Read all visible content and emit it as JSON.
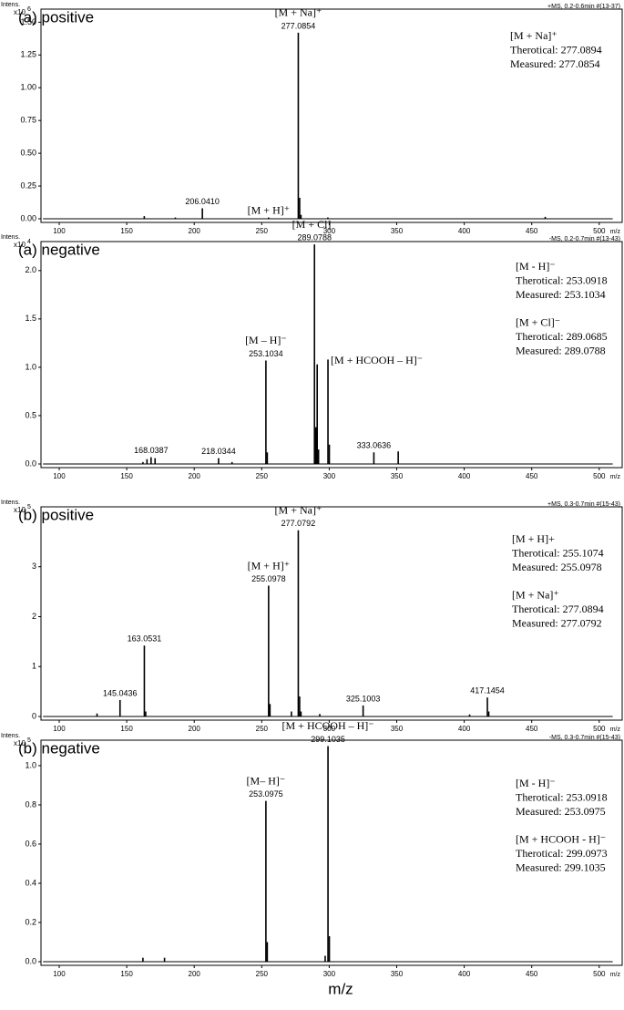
{
  "shared_x_label": "m/z",
  "chart_data": [
    {
      "type": "stem",
      "title": "(a) positive",
      "scan_info": "+MS, 0.2-0.6min #(13-37)",
      "y_label": "Intens.",
      "y_multiplier": "x10",
      "y_exponent": "6",
      "x_unit": "m/z",
      "color": "#000000",
      "xlim": [
        86.5,
        517
      ],
      "xticks": [
        100,
        150,
        200,
        250,
        300,
        350,
        400,
        450,
        500
      ],
      "ylim": [
        0,
        1.6
      ],
      "yticks": [
        {
          "value": 0,
          "label": "0.00"
        },
        0.25,
        {
          "value": 0.5,
          "label": "0.50"
        },
        0.75,
        {
          "value": 1,
          "label": "1.00"
        },
        1.25,
        {
          "value": 1.5,
          "label": "1.50"
        }
      ],
      "x": [
        163.0,
        186.0,
        206.041,
        255.1,
        277.0854,
        278.09,
        279.09,
        299.0,
        460.0
      ],
      "values": [
        0.02,
        0.01,
        0.08,
        0.01,
        1.42,
        0.16,
        0.03,
        0.01,
        0.015
      ],
      "peak_labels": [
        null,
        null,
        "206.0410",
        null,
        "277.0854",
        null,
        null,
        null,
        null
      ],
      "ion_labels": [
        null,
        null,
        null,
        "[M + H]⁺",
        "[M + Na]⁺",
        null,
        null,
        null,
        null
      ],
      "info_box": [
        [
          "[M + Na]⁺",
          "Therotical: 277.0894",
          "Measured: 277.0854"
        ]
      ]
    },
    {
      "type": "stem",
      "title": "(a) negative",
      "scan_info": "-MS, 0.2-0.7min #(13-43)",
      "y_label": "Intens.",
      "y_multiplier": "x10",
      "y_exponent": "4",
      "x_unit": "m/z",
      "color": "#000000",
      "xlim": [
        86.5,
        517
      ],
      "xticks": [
        100,
        150,
        200,
        250,
        300,
        350,
        400,
        450,
        500
      ],
      "ylim": [
        0,
        2.3
      ],
      "yticks": [
        {
          "value": 0,
          "label": "0.0"
        },
        0.5,
        {
          "value": 1,
          "label": "1.0"
        },
        1.5,
        {
          "value": 2,
          "label": "2.0"
        }
      ],
      "x": [
        162,
        165,
        168.0387,
        171,
        218.0344,
        228,
        253.1034,
        254.1,
        289.0788,
        290.08,
        291.08,
        292.08,
        299.08,
        300.08,
        333.0636,
        351.1
      ],
      "values": [
        0.02,
        0.05,
        0.07,
        0.06,
        0.06,
        0.02,
        1.07,
        0.12,
        2.27,
        0.38,
        1.03,
        0.15,
        1.08,
        0.2,
        0.12,
        0.13
      ],
      "peak_labels": [
        null,
        null,
        "168.0387",
        null,
        "218.0344",
        null,
        "253.1034",
        null,
        "289.0788",
        null,
        null,
        null,
        null,
        null,
        "333.0636",
        null
      ],
      "ion_labels": [
        null,
        null,
        null,
        null,
        null,
        null,
        "[M – H]⁻",
        null,
        "[M + Cl]⁻",
        null,
        null,
        null,
        "[M + HCOOH – H]⁻",
        null,
        null,
        null
      ],
      "info_box": [
        [
          "[M - H]⁻",
          "Therotical: 253.0918",
          "Measured: 253.1034"
        ],
        [
          "[M + Cl]⁻",
          "Therotical: 289.0685",
          "Measured: 289.0788"
        ]
      ]
    },
    {
      "type": "stem",
      "title": "(b) positive",
      "scan_info": "+MS, 0.3-0.7min #(15-43)",
      "y_label": "Intens.",
      "y_multiplier": "x10",
      "y_exponent": "5",
      "x_unit": "m/z",
      "color": "#000000",
      "xlim": [
        86.5,
        517
      ],
      "xticks": [
        100,
        150,
        200,
        250,
        300,
        350,
        400,
        450,
        500
      ],
      "ylim": [
        0,
        4.2
      ],
      "yticks": [
        0,
        1,
        2,
        3
      ],
      "x": [
        128,
        145.0436,
        163.0531,
        164.05,
        255.0978,
        256.1,
        272,
        277.0792,
        278.08,
        279.08,
        293,
        325.1003,
        404,
        417.1454,
        418.15
      ],
      "values": [
        0.06,
        0.33,
        1.42,
        0.1,
        2.62,
        0.25,
        0.1,
        3.73,
        0.4,
        0.1,
        0.05,
        0.22,
        0.04,
        0.38,
        0.1
      ],
      "peak_labels": [
        null,
        "145.0436",
        "163.0531",
        null,
        "255.0978",
        null,
        null,
        "277.0792",
        null,
        null,
        null,
        "325.1003",
        null,
        "417.1454",
        null
      ],
      "ion_labels": [
        null,
        null,
        null,
        null,
        "[M + H]⁺",
        null,
        null,
        "[M + Na]⁺",
        null,
        null,
        null,
        null,
        null,
        null,
        null
      ],
      "info_box": [
        [
          "[M + H]+",
          "Therotical: 255.1074",
          "Measured: 255.0978"
        ],
        [
          "[M + Na]⁺",
          "Therotical: 277.0894",
          "Measured: 277.0792"
        ]
      ]
    },
    {
      "type": "stem",
      "title": "(b) negative",
      "scan_info": "-MS, 0.3-0.7min #(15-43)",
      "y_label": "Intens.",
      "y_multiplier": "x10",
      "y_exponent": "5",
      "x_unit": "m/z",
      "color": "#000000",
      "xlim": [
        86.5,
        517
      ],
      "xticks": [
        100,
        150,
        200,
        250,
        300,
        350,
        400,
        450,
        500
      ],
      "ylim": [
        0,
        1.13
      ],
      "yticks": [
        {
          "value": 0,
          "label": "0.0"
        },
        0.2,
        0.4,
        0.6,
        0.8,
        {
          "value": 1,
          "label": "1.0"
        }
      ],
      "x": [
        162,
        178,
        253.0975,
        254.1,
        297,
        299.1035,
        300.1
      ],
      "values": [
        0.02,
        0.02,
        0.82,
        0.1,
        0.03,
        1.1,
        0.13
      ],
      "peak_labels": [
        null,
        null,
        "253.0975",
        null,
        null,
        "299.1035",
        null
      ],
      "ion_labels": [
        null,
        null,
        "[M– H]⁻",
        null,
        null,
        "[M + HCOOH – H]⁻",
        null
      ],
      "info_box": [
        [
          "[M - H]⁻",
          "Therotical: 253.0918",
          "Measured: 253.0975"
        ],
        [
          "[M + HCOOH - H]⁻",
          "Therotical: 299.0973",
          "Measured: 299.1035"
        ]
      ]
    }
  ]
}
